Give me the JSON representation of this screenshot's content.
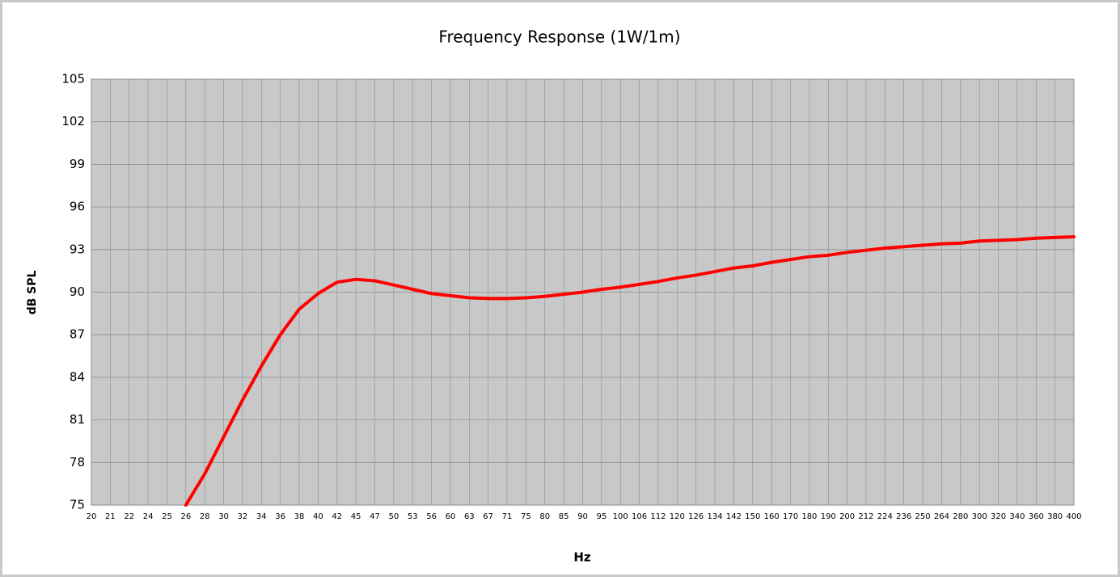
{
  "chart_data": {
    "type": "line",
    "title": "Frequency Response (1W/1m)",
    "x_label": "Hz",
    "y_label": "dB SPL",
    "categories": [
      "20",
      "21",
      "22",
      "24",
      "25",
      "26",
      "28",
      "30",
      "32",
      "34",
      "36",
      "38",
      "40",
      "42",
      "45",
      "47",
      "50",
      "53",
      "56",
      "60",
      "63",
      "67",
      "71",
      "75",
      "80",
      "85",
      "90",
      "95",
      "100",
      "106",
      "112",
      "120",
      "126",
      "134",
      "142",
      "150",
      "160",
      "170",
      "180",
      "190",
      "200",
      "212",
      "224",
      "236",
      "250",
      "264",
      "280",
      "300",
      "320",
      "340",
      "360",
      "380",
      "400"
    ],
    "series": [
      {
        "name": "SPL",
        "color": "#ff0000",
        "values": [
          null,
          null,
          null,
          null,
          null,
          75,
          77.2,
          79.8,
          82.4,
          84.8,
          87.0,
          88.8,
          89.9,
          90.7,
          90.9,
          90.8,
          90.5,
          90.2,
          89.9,
          89.75,
          89.6,
          89.55,
          89.55,
          89.6,
          89.7,
          89.85,
          90.0,
          90.2,
          90.35,
          90.55,
          90.75,
          91.0,
          91.2,
          91.45,
          91.7,
          91.85,
          92.1,
          92.3,
          92.5,
          92.6,
          92.8,
          92.95,
          93.1,
          93.2,
          93.3,
          93.4,
          93.45,
          93.6,
          93.65,
          93.7,
          93.8,
          93.85,
          93.9
        ]
      }
    ],
    "ylim": [
      75,
      105
    ],
    "yticks": [
      75,
      78,
      81,
      84,
      87,
      90,
      93,
      96,
      99,
      102,
      105
    ],
    "grid": true
  }
}
